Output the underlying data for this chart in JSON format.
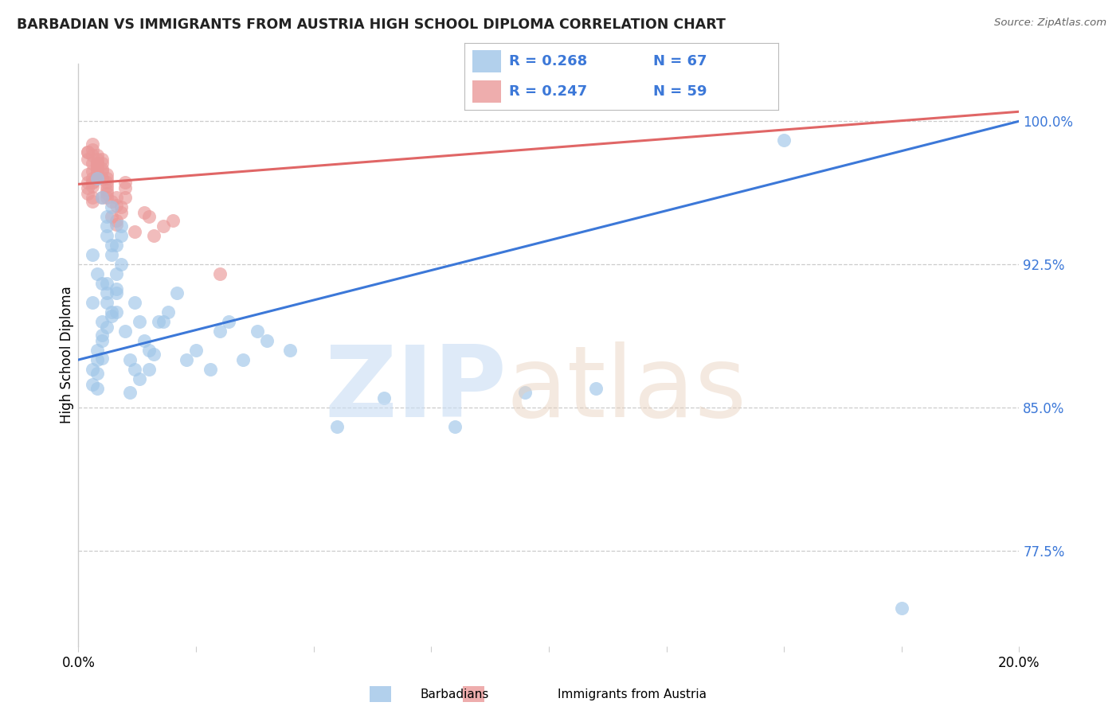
{
  "title": "BARBADIAN VS IMMIGRANTS FROM AUSTRIA HIGH SCHOOL DIPLOMA CORRELATION CHART",
  "source": "Source: ZipAtlas.com",
  "ylabel": "High School Diploma",
  "ytick_labels": [
    "77.5%",
    "85.0%",
    "92.5%",
    "100.0%"
  ],
  "ytick_values": [
    0.775,
    0.85,
    0.925,
    1.0
  ],
  "xmin": 0.0,
  "xmax": 0.2,
  "ymin": 0.725,
  "ymax": 1.03,
  "legend_R1": "R = 0.268",
  "legend_N1": "N = 67",
  "legend_R2": "R = 0.247",
  "legend_N2": "N = 59",
  "color_blue": "#9fc5e8",
  "color_pink": "#ea9999",
  "line_color_blue": "#3c78d8",
  "line_color_pink": "#e06666",
  "value_color": "#3c78d8",
  "background_color": "#ffffff",
  "legend_label1": "Barbadians",
  "legend_label2": "Immigrants from Austria",
  "xtick_left": "0.0%",
  "xtick_right": "20.0%",
  "grid_color": "#cccccc",
  "n_blue": 67,
  "n_pink": 59,
  "blue_x": [
    0.003,
    0.005,
    0.007,
    0.004,
    0.006,
    0.008,
    0.003,
    0.005,
    0.006,
    0.004,
    0.007,
    0.009,
    0.005,
    0.008,
    0.006,
    0.004,
    0.007,
    0.003,
    0.009,
    0.005,
    0.006,
    0.008,
    0.004,
    0.007,
    0.005,
    0.006,
    0.004,
    0.008,
    0.003,
    0.006,
    0.009,
    0.005,
    0.007,
    0.004,
    0.006,
    0.008,
    0.01,
    0.012,
    0.011,
    0.013,
    0.015,
    0.014,
    0.016,
    0.018,
    0.013,
    0.011,
    0.015,
    0.017,
    0.012,
    0.019,
    0.021,
    0.023,
    0.025,
    0.03,
    0.028,
    0.032,
    0.04,
    0.035,
    0.038,
    0.045,
    0.055,
    0.065,
    0.08,
    0.095,
    0.11,
    0.15,
    0.175
  ],
  "blue_y": [
    0.93,
    0.96,
    0.955,
    0.97,
    0.945,
    0.935,
    0.905,
    0.915,
    0.94,
    0.92,
    0.9,
    0.925,
    0.895,
    0.91,
    0.95,
    0.88,
    0.935,
    0.87,
    0.945,
    0.888,
    0.915,
    0.9,
    0.86,
    0.93,
    0.876,
    0.905,
    0.875,
    0.92,
    0.862,
    0.91,
    0.94,
    0.885,
    0.898,
    0.868,
    0.892,
    0.912,
    0.89,
    0.905,
    0.875,
    0.895,
    0.87,
    0.885,
    0.878,
    0.895,
    0.865,
    0.858,
    0.88,
    0.895,
    0.87,
    0.9,
    0.91,
    0.875,
    0.88,
    0.89,
    0.87,
    0.895,
    0.885,
    0.875,
    0.89,
    0.88,
    0.84,
    0.855,
    0.84,
    0.858,
    0.86,
    0.99,
    0.745
  ],
  "pink_x": [
    0.002,
    0.003,
    0.004,
    0.003,
    0.005,
    0.004,
    0.002,
    0.006,
    0.003,
    0.004,
    0.005,
    0.003,
    0.002,
    0.004,
    0.006,
    0.003,
    0.005,
    0.004,
    0.003,
    0.002,
    0.006,
    0.004,
    0.003,
    0.005,
    0.002,
    0.004,
    0.003,
    0.006,
    0.004,
    0.003,
    0.005,
    0.002,
    0.004,
    0.006,
    0.003,
    0.005,
    0.004,
    0.002,
    0.006,
    0.003,
    0.007,
    0.008,
    0.009,
    0.01,
    0.008,
    0.007,
    0.009,
    0.006,
    0.008,
    0.01,
    0.012,
    0.015,
    0.018,
    0.02,
    0.016,
    0.014,
    0.01,
    0.008,
    0.03
  ],
  "pink_y": [
    0.98,
    0.97,
    0.975,
    0.985,
    0.96,
    0.978,
    0.965,
    0.972,
    0.968,
    0.982,
    0.974,
    0.988,
    0.962,
    0.976,
    0.97,
    0.958,
    0.98,
    0.972,
    0.966,
    0.984,
    0.968,
    0.976,
    0.96,
    0.978,
    0.984,
    0.97,
    0.974,
    0.964,
    0.98,
    0.968,
    0.975,
    0.972,
    0.978,
    0.966,
    0.982,
    0.97,
    0.974,
    0.968,
    0.96,
    0.978,
    0.95,
    0.96,
    0.955,
    0.965,
    0.948,
    0.958,
    0.952,
    0.962,
    0.956,
    0.968,
    0.942,
    0.95,
    0.945,
    0.948,
    0.94,
    0.952,
    0.96,
    0.946,
    0.92
  ]
}
